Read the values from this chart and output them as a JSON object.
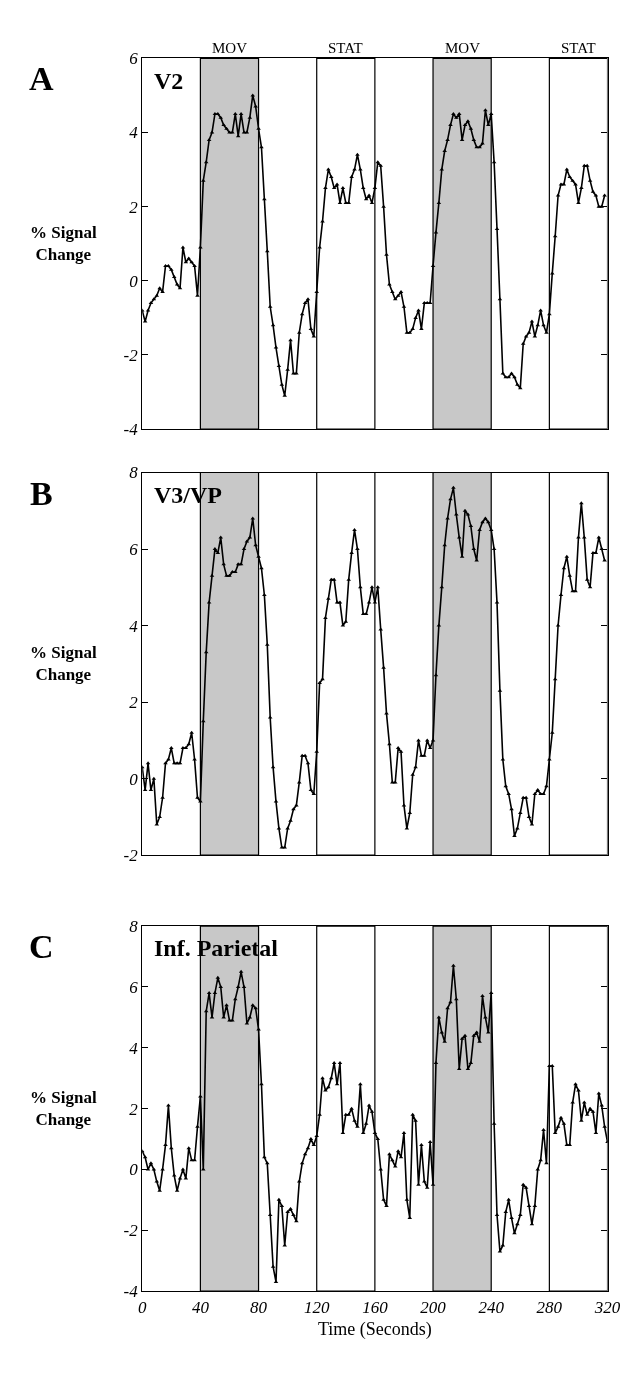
{
  "chart_data": [
    {
      "type": "line",
      "title": "A",
      "ylabel": "% Signal Change",
      "annotations": [
        "V2"
      ],
      "marker": "triangle",
      "line_style": "solid",
      "tick_labels": "y",
      "x": [
        0,
        2,
        4,
        6,
        8,
        10,
        12,
        14,
        16,
        18,
        20,
        22,
        24,
        26,
        28,
        30,
        32,
        34,
        36,
        38,
        40,
        42,
        44,
        46,
        48,
        50,
        52,
        54,
        56,
        58,
        60,
        62,
        64,
        66,
        68,
        70,
        72,
        74,
        76,
        78,
        80,
        82,
        84,
        86,
        88,
        90,
        92,
        94,
        96,
        98,
        100,
        102,
        104,
        106,
        108,
        110,
        112,
        114,
        116,
        118,
        120,
        122,
        124,
        126,
        128,
        130,
        132,
        134,
        136,
        138,
        140,
        142,
        144,
        146,
        148,
        150,
        152,
        154,
        156,
        158,
        160,
        162,
        164,
        166,
        168,
        170,
        172,
        174,
        176,
        178,
        180,
        182,
        184,
        186,
        188,
        190,
        192,
        194,
        196,
        198,
        200,
        202,
        204,
        206,
        208,
        210,
        212,
        214,
        216,
        218,
        220,
        222,
        224,
        226,
        228,
        230,
        232,
        234,
        236,
        238,
        240,
        242,
        244,
        246,
        248,
        250,
        252,
        254,
        256,
        258,
        260,
        262,
        264,
        266,
        268,
        270,
        272,
        274,
        276,
        278,
        280,
        282,
        284,
        286,
        288,
        290,
        292,
        294,
        296,
        298,
        300,
        302,
        304,
        306,
        308,
        310,
        312,
        314,
        316,
        318
      ],
      "series": [
        {
          "color": "#000000",
          "values": [
            -0.8,
            -1.1,
            -0.8,
            -0.6,
            -0.5,
            -0.4,
            -0.2,
            -0.3,
            0.4,
            0.4,
            0.3,
            0.1,
            -0.1,
            -0.2,
            0.9,
            0.5,
            0.6,
            0.5,
            0.4,
            -0.4,
            0.9,
            2.7,
            3.2,
            3.8,
            4.0,
            4.5,
            4.5,
            4.4,
            4.2,
            4.1,
            4.0,
            4.0,
            4.5,
            3.9,
            4.5,
            4.0,
            4.0,
            4.4,
            5.0,
            4.7,
            4.1,
            3.6,
            2.2,
            0.8,
            -0.7,
            -1.2,
            -1.8,
            -2.3,
            -2.8,
            -3.1,
            -2.4,
            -1.6,
            -2.5,
            -2.5,
            -1.4,
            -0.9,
            -0.6,
            -0.5,
            -1.3,
            -1.5,
            -0.3,
            0.9,
            1.6,
            2.5,
            3.0,
            2.8,
            2.5,
            2.6,
            2.1,
            2.5,
            2.1,
            2.1,
            2.8,
            3.0,
            3.4,
            3.0,
            2.5,
            2.2,
            2.3,
            2.1,
            2.5,
            3.2,
            3.1,
            2.0,
            0.7,
            -0.1,
            -0.3,
            -0.5,
            -0.4,
            -0.3,
            -0.7,
            -1.4,
            -1.4,
            -1.3,
            -1.0,
            -0.8,
            -1.3,
            -0.6,
            -0.6,
            -0.6,
            0.4,
            1.3,
            2.1,
            3.0,
            3.5,
            3.8,
            4.2,
            4.5,
            4.4,
            4.5,
            3.8,
            4.2,
            4.3,
            4.1,
            3.8,
            3.6,
            3.6,
            3.7,
            4.6,
            4.2,
            4.5,
            3.2,
            1.4,
            -0.5,
            -2.5,
            -2.6,
            -2.6,
            -2.5,
            -2.6,
            -2.8,
            -2.9,
            -1.7,
            -1.5,
            -1.4,
            -1.1,
            -1.5,
            -1.2,
            -0.8,
            -1.2,
            -1.4,
            -0.9,
            0.2,
            1.2,
            2.3,
            2.6,
            2.6,
            3.0,
            2.8,
            2.7,
            2.6,
            2.1,
            2.5,
            3.1,
            3.1,
            2.7,
            2.4,
            2.3,
            2.0,
            2.0,
            2.3
          ]
        }
      ],
      "xlim": [
        0,
        320
      ],
      "xticks": [
        0,
        40,
        80,
        120,
        160,
        200,
        240,
        280,
        320
      ],
      "ylim": [
        -4,
        6
      ],
      "yticks": [
        -4,
        -2,
        0,
        2,
        4,
        6
      ],
      "bands": [
        {
          "axis": "x",
          "from": 40,
          "to": 80,
          "label": "MOV",
          "color": "#c8c8c8"
        },
        {
          "axis": "x",
          "from": 120,
          "to": 160,
          "label": "STAT",
          "color": "#ffffff"
        },
        {
          "axis": "x",
          "from": 200,
          "to": 240,
          "label": "MOV",
          "color": "#c8c8c8"
        },
        {
          "axis": "x",
          "from": 280,
          "to": 320,
          "label": "STAT",
          "color": "#ffffff"
        }
      ]
    },
    {
      "type": "line",
      "title": "B",
      "ylabel": "% Signal Change",
      "annotations": [
        "V3/VP"
      ],
      "marker": "triangle",
      "line_style": "solid",
      "tick_labels": "y",
      "x": [
        0,
        2,
        4,
        6,
        8,
        10,
        12,
        14,
        16,
        18,
        20,
        22,
        24,
        26,
        28,
        30,
        32,
        34,
        36,
        38,
        40,
        42,
        44,
        46,
        48,
        50,
        52,
        54,
        56,
        58,
        60,
        62,
        64,
        66,
        68,
        70,
        72,
        74,
        76,
        78,
        80,
        82,
        84,
        86,
        88,
        90,
        92,
        94,
        96,
        98,
        100,
        102,
        104,
        106,
        108,
        110,
        112,
        114,
        116,
        118,
        120,
        122,
        124,
        126,
        128,
        130,
        132,
        134,
        136,
        138,
        140,
        142,
        144,
        146,
        148,
        150,
        152,
        154,
        156,
        158,
        160,
        162,
        164,
        166,
        168,
        170,
        172,
        174,
        176,
        178,
        180,
        182,
        184,
        186,
        188,
        190,
        192,
        194,
        196,
        198,
        200,
        202,
        204,
        206,
        208,
        210,
        212,
        214,
        216,
        218,
        220,
        222,
        224,
        226,
        228,
        230,
        232,
        234,
        236,
        238,
        240,
        242,
        244,
        246,
        248,
        250,
        252,
        254,
        256,
        258,
        260,
        262,
        264,
        266,
        268,
        270,
        272,
        274,
        276,
        278,
        280,
        282,
        284,
        286,
        288,
        290,
        292,
        294,
        296,
        298,
        300,
        302,
        304,
        306,
        308,
        310,
        312,
        314,
        316,
        318
      ],
      "series": [
        {
          "color": "#000000",
          "values": [
            0.3,
            -0.3,
            0.4,
            -0.3,
            0.0,
            -1.2,
            -1.0,
            -0.5,
            0.4,
            0.5,
            0.8,
            0.4,
            0.4,
            0.4,
            0.8,
            0.8,
            0.9,
            1.2,
            0.5,
            -0.5,
            -0.6,
            1.5,
            3.3,
            4.6,
            5.3,
            6.0,
            5.9,
            6.3,
            5.6,
            5.3,
            5.3,
            5.4,
            5.4,
            5.6,
            5.6,
            6.0,
            6.2,
            6.3,
            6.8,
            6.1,
            5.8,
            5.5,
            4.8,
            3.5,
            1.6,
            0.3,
            -0.6,
            -1.3,
            -1.8,
            -1.8,
            -1.3,
            -1.1,
            -0.8,
            -0.7,
            -0.1,
            0.6,
            0.6,
            0.4,
            -0.3,
            -0.4,
            0.7,
            2.5,
            2.6,
            4.2,
            4.7,
            5.2,
            5.2,
            4.6,
            4.6,
            4.0,
            4.1,
            5.2,
            5.9,
            6.5,
            6.0,
            5.0,
            4.3,
            4.3,
            4.6,
            5.0,
            4.6,
            5.0,
            3.9,
            2.9,
            1.7,
            0.9,
            -0.1,
            -0.1,
            0.8,
            0.7,
            -0.7,
            -1.3,
            -0.9,
            0.1,
            0.3,
            1.0,
            0.6,
            0.6,
            1.0,
            0.8,
            1.0,
            2.7,
            4.0,
            5.0,
            6.1,
            6.8,
            7.3,
            7.6,
            6.9,
            6.3,
            5.8,
            7.0,
            6.9,
            6.6,
            6.0,
            5.7,
            6.5,
            6.7,
            6.8,
            6.7,
            6.5,
            6.0,
            4.6,
            2.3,
            0.5,
            -0.2,
            -0.4,
            -0.8,
            -1.5,
            -1.3,
            -0.9,
            -0.5,
            -0.5,
            -1.0,
            -1.2,
            -0.4,
            -0.3,
            -0.4,
            -0.4,
            -0.2,
            0.5,
            1.2,
            2.6,
            4.0,
            4.8,
            5.5,
            5.8,
            5.3,
            4.9,
            4.9,
            6.3,
            7.2,
            6.3,
            5.2,
            5.0,
            5.9,
            5.9,
            6.3,
            6.0,
            5.7
          ]
        }
      ],
      "xlim": [
        0,
        320
      ],
      "xticks": [
        0,
        40,
        80,
        120,
        160,
        200,
        240,
        280,
        320
      ],
      "ylim": [
        -2,
        8
      ],
      "yticks": [
        -2,
        0,
        2,
        4,
        6,
        8
      ],
      "bands": [
        {
          "axis": "x",
          "from": 40,
          "to": 80,
          "color": "#c8c8c8"
        },
        {
          "axis": "x",
          "from": 120,
          "to": 160,
          "color": "#ffffff"
        },
        {
          "axis": "x",
          "from": 200,
          "to": 240,
          "color": "#c8c8c8"
        },
        {
          "axis": "x",
          "from": 280,
          "to": 320,
          "color": "#ffffff"
        }
      ]
    },
    {
      "type": "line",
      "title": "C",
      "ylabel": "% Signal Change",
      "xlabel": "Time (Seconds)",
      "annotations": [
        "Inf. Parietal"
      ],
      "marker": "triangle",
      "line_style": "solid",
      "x": [
        0,
        2,
        4,
        6,
        8,
        10,
        12,
        14,
        16,
        18,
        20,
        22,
        24,
        26,
        28,
        30,
        32,
        34,
        36,
        38,
        40,
        42,
        44,
        46,
        48,
        50,
        52,
        54,
        56,
        58,
        60,
        62,
        64,
        66,
        68,
        70,
        72,
        74,
        76,
        78,
        80,
        82,
        84,
        86,
        88,
        90,
        92,
        94,
        96,
        98,
        100,
        102,
        104,
        106,
        108,
        110,
        112,
        114,
        116,
        118,
        120,
        122,
        124,
        126,
        128,
        130,
        132,
        134,
        136,
        138,
        140,
        142,
        144,
        146,
        148,
        150,
        152,
        154,
        156,
        158,
        160,
        162,
        164,
        166,
        168,
        170,
        172,
        174,
        176,
        178,
        180,
        182,
        184,
        186,
        188,
        190,
        192,
        194,
        196,
        198,
        200,
        202,
        204,
        206,
        208,
        210,
        212,
        214,
        216,
        218,
        220,
        222,
        224,
        226,
        228,
        230,
        232,
        234,
        236,
        238,
        240,
        242,
        244,
        246,
        248,
        250,
        252,
        254,
        256,
        258,
        260,
        262,
        264,
        266,
        268,
        270,
        272,
        274,
        276,
        278,
        280,
        282,
        284,
        286,
        288,
        290,
        292,
        294,
        296,
        298,
        300,
        302,
        304,
        306,
        308,
        310,
        312,
        314,
        316,
        318,
        320
      ],
      "series": [
        {
          "color": "#000000",
          "values": [
            0.6,
            0.4,
            0.0,
            0.2,
            0.0,
            -0.4,
            -0.7,
            0.0,
            0.8,
            2.1,
            0.7,
            -0.2,
            -0.7,
            -0.3,
            0.0,
            -0.3,
            0.7,
            0.3,
            0.3,
            1.4,
            2.4,
            0.0,
            5.2,
            5.8,
            5.0,
            5.8,
            6.3,
            6.0,
            5.0,
            5.4,
            4.9,
            4.9,
            5.6,
            6.0,
            6.5,
            6.0,
            4.8,
            5.0,
            5.4,
            5.3,
            4.6,
            2.8,
            0.4,
            0.2,
            -1.5,
            -3.2,
            -3.7,
            -1.0,
            -1.2,
            -2.5,
            -1.4,
            -1.3,
            -1.5,
            -1.7,
            -0.4,
            0.2,
            0.5,
            0.7,
            1.0,
            0.8,
            1.1,
            1.8,
            3.0,
            2.6,
            2.7,
            3.0,
            3.5,
            2.8,
            3.5,
            1.2,
            1.8,
            1.8,
            2.0,
            1.6,
            1.4,
            2.8,
            1.2,
            1.5,
            2.1,
            1.9,
            1.2,
            1.0,
            0.0,
            -1.0,
            -1.2,
            0.5,
            0.3,
            0.1,
            0.6,
            0.4,
            1.2,
            -1.0,
            -1.6,
            1.8,
            1.6,
            -0.5,
            0.8,
            -0.4,
            -0.6,
            0.9,
            -0.5,
            3.5,
            5.0,
            4.5,
            4.2,
            5.3,
            5.5,
            6.7,
            5.6,
            3.3,
            4.3,
            4.4,
            3.3,
            3.5,
            4.4,
            4.5,
            4.2,
            5.7,
            5.0,
            4.5,
            5.8,
            1.5,
            -1.5,
            -2.7,
            -2.5,
            -1.4,
            -1.0,
            -1.6,
            -2.1,
            -1.8,
            -1.5,
            -0.5,
            -0.6,
            -1.2,
            -1.8,
            -1.2,
            0.0,
            0.3,
            1.3,
            0.2,
            3.4,
            3.4,
            1.2,
            1.4,
            1.7,
            1.5,
            0.8,
            0.8,
            2.2,
            2.8,
            2.6,
            1.6,
            2.2,
            1.8,
            2.0,
            1.9,
            1.2,
            2.5,
            2.1,
            1.4,
            0.9
          ]
        }
      ],
      "xlim": [
        0,
        320
      ],
      "xticks": [
        0,
        40,
        80,
        120,
        160,
        200,
        240,
        280,
        320
      ],
      "ylim": [
        -4,
        8
      ],
      "yticks": [
        -4,
        -2,
        0,
        2,
        4,
        6,
        8
      ],
      "bands": [
        {
          "axis": "x",
          "from": 40,
          "to": 80,
          "color": "#c8c8c8"
        },
        {
          "axis": "x",
          "from": 120,
          "to": 160,
          "color": "#ffffff"
        },
        {
          "axis": "x",
          "from": 200,
          "to": 240,
          "color": "#c8c8c8"
        },
        {
          "axis": "x",
          "from": 280,
          "to": 320,
          "color": "#ffffff"
        }
      ]
    }
  ]
}
